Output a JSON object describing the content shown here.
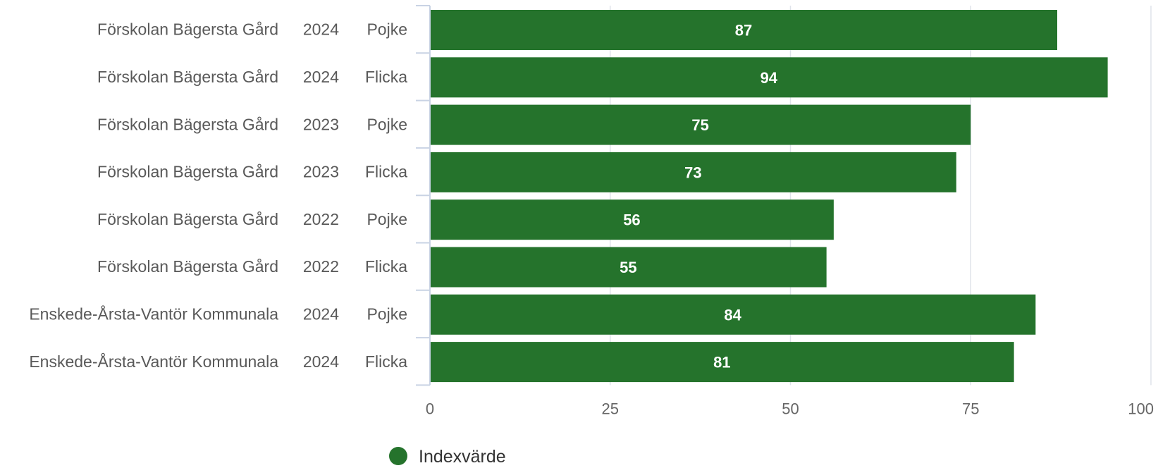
{
  "chart_data": {
    "type": "bar",
    "orientation": "horizontal",
    "categories": [
      [
        "Förskolan Bägersta Gård",
        "2024",
        "Pojke"
      ],
      [
        "Förskolan Bägersta Gård",
        "2024",
        "Flicka"
      ],
      [
        "Förskolan Bägersta Gård",
        "2023",
        "Pojke"
      ],
      [
        "Förskolan Bägersta Gård",
        "2023",
        "Flicka"
      ],
      [
        "Förskolan Bägersta Gård",
        "2022",
        "Pojke"
      ],
      [
        "Förskolan Bägersta Gård",
        "2022",
        "Flicka"
      ],
      [
        "Enskede-Årsta-Vantör Kommunala",
        "2024",
        "Pojke"
      ],
      [
        "Enskede-Årsta-Vantör Kommunala",
        "2024",
        "Flicka"
      ]
    ],
    "series": [
      {
        "name": "Indexvärde",
        "color": "#25732c",
        "values": [
          87,
          94,
          75,
          73,
          56,
          55,
          84,
          81
        ]
      }
    ],
    "xlim": [
      0,
      100
    ],
    "xticks": [
      0,
      25,
      50,
      75,
      100
    ],
    "grid": true,
    "data_labels": true,
    "legend": {
      "position": "bottom-left",
      "marker": "circle"
    },
    "title": "",
    "xlabel": "",
    "ylabel": ""
  }
}
